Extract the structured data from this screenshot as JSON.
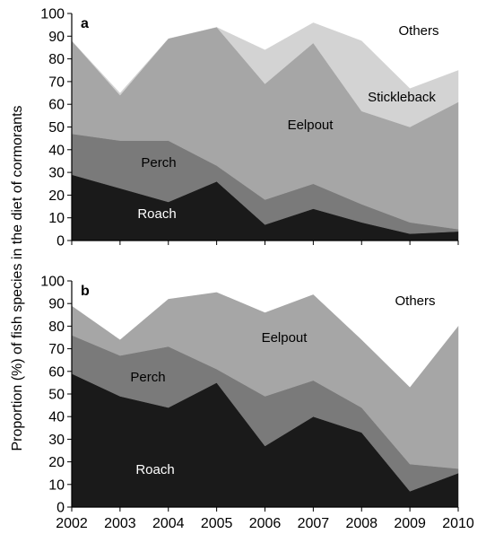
{
  "chart_data": {
    "type": "area",
    "stacked": true,
    "ylabel": "Proportion (%) of fish species in the diet of cormorants",
    "x": [
      2002,
      2003,
      2004,
      2005,
      2006,
      2007,
      2008,
      2009,
      2010
    ],
    "xlim": [
      2002,
      2010
    ],
    "ylim": [
      0,
      100
    ],
    "yticks": [
      0,
      10,
      20,
      30,
      40,
      50,
      60,
      70,
      80,
      90,
      100
    ],
    "grid": false,
    "colors": {
      "Roach": "#1a1a1a",
      "Perch": "#7a7a7a",
      "Eelpout": "#a6a6a6",
      "Stickleback": "#d3d3d3",
      "Others": "#ffffff"
    },
    "panels": [
      {
        "tag": "a",
        "series": [
          {
            "name": "Roach",
            "values": [
              29,
              23,
              17,
              26,
              7,
              14,
              8,
              3,
              4
            ]
          },
          {
            "name": "Perch",
            "values": [
              18,
              21,
              27,
              7,
              11,
              11,
              8,
              5,
              1
            ]
          },
          {
            "name": "Eelpout",
            "values": [
              41,
              20,
              45,
              61,
              51,
              62,
              41,
              42,
              56
            ]
          },
          {
            "name": "Stickleback",
            "values": [
              0,
              1,
              0,
              0,
              15,
              9,
              31,
              17,
              14
            ]
          },
          {
            "name": "Others",
            "values": [
              12,
              35,
              11,
              6,
              16,
              4,
              12,
              33,
              25
            ]
          }
        ]
      },
      {
        "tag": "b",
        "series": [
          {
            "name": "Roach",
            "values": [
              59,
              49,
              44,
              55,
              27,
              40,
              33,
              7,
              15
            ]
          },
          {
            "name": "Perch",
            "values": [
              17,
              18,
              27,
              6,
              22,
              16,
              11,
              12,
              2
            ]
          },
          {
            "name": "Eelpout",
            "values": [
              13,
              7,
              21,
              34,
              37,
              38,
              30,
              34,
              63
            ]
          },
          {
            "name": "Others",
            "values": [
              11,
              26,
              8,
              5,
              14,
              6,
              26,
              47,
              20
            ]
          }
        ]
      }
    ]
  }
}
